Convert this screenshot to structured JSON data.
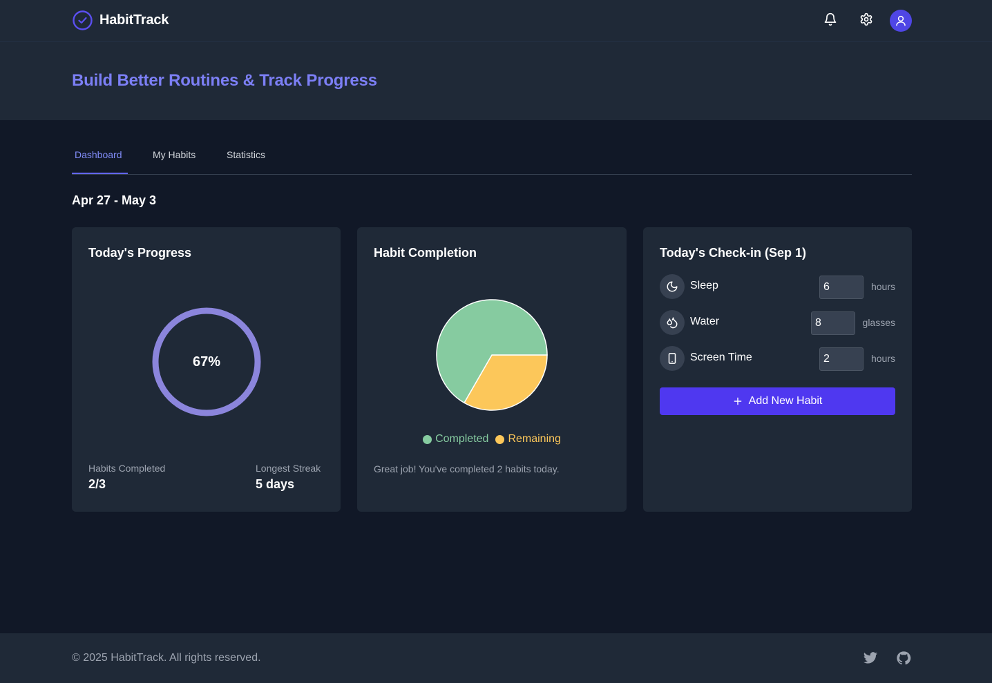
{
  "app": {
    "name": "HabitTrack",
    "brand_color": "#4f46e5",
    "accent_text_color": "#7c7ff5"
  },
  "header": {
    "icons": [
      "check-circle-icon",
      "bell-icon",
      "gear-icon",
      "user-icon"
    ]
  },
  "hero": {
    "title": "Build Better Routines & Track Progress"
  },
  "tabs": [
    {
      "label": "Dashboard",
      "active": true
    },
    {
      "label": "My Habits",
      "active": false
    },
    {
      "label": "Statistics",
      "active": false
    }
  ],
  "week_range": "Apr 27 - May 3",
  "progress_card": {
    "title": "Today's Progress",
    "percent_label": "67%",
    "percent_value": 0.67,
    "ring_color": "#8b85dc",
    "habits_completed_label": "Habits Completed",
    "habits_completed_value": "2/3",
    "streak_label": "Longest Streak",
    "streak_value": "5 days"
  },
  "completion_card": {
    "title": "Habit Completion",
    "message": "Great job! You've completed 2 habits today.",
    "legend": {
      "completed": "Completed",
      "remaining": "Remaining"
    },
    "colors": {
      "completed": "#86cba0",
      "remaining": "#fcc75a"
    }
  },
  "chart_data": {
    "type": "pie",
    "title": "Habit Completion",
    "categories": [
      "Completed",
      "Remaining"
    ],
    "values": [
      2,
      1
    ],
    "colors": [
      "#86cba0",
      "#fcc75a"
    ],
    "legend_position": "bottom"
  },
  "checkin_card": {
    "title": "Today's Check-in (Sep 1)",
    "rows": [
      {
        "label": "Sleep",
        "value": "6",
        "unit": "hours",
        "icon": "moon-icon"
      },
      {
        "label": "Water",
        "value": "8",
        "unit": "glasses",
        "icon": "droplets-icon"
      },
      {
        "label": "Screen Time",
        "value": "2",
        "unit": "hours",
        "icon": "phone-icon"
      }
    ],
    "add_button": "Add New Habit"
  },
  "footer": {
    "copyright": "© 2025 HabitTrack. All rights reserved.",
    "icons": [
      "twitter-icon",
      "github-icon"
    ]
  }
}
